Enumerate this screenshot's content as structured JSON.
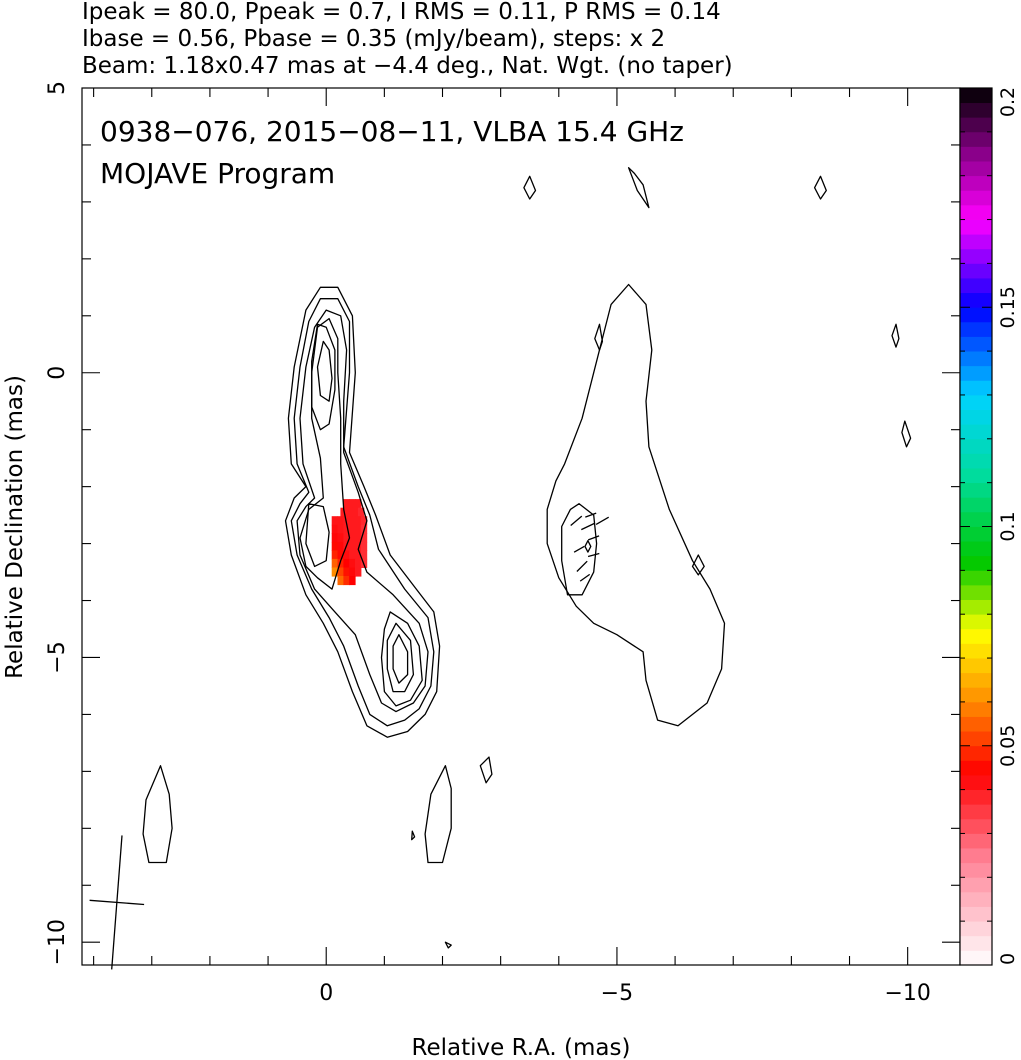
{
  "header_lines": [
    "Ipeak = 80.0, Ppeak = 0.7, I RMS = 0.11, P RMS = 0.14",
    "Ibase = 0.56, Pbase = 0.35 (mJy/beam), steps: x 2",
    "Beam: 1.18x0.47 mas at −4.4 deg., Nat. Wgt. (no taper)"
  ],
  "chart_data": {
    "type": "contour",
    "title": "0938−076, 2015−08−11, VLBA 15.4 GHz",
    "subtitle": "MOJAVE Program",
    "xlabel": "Relative R.A. (mas)",
    "ylabel": "Relative Declination (mas)",
    "xlim": [
      4.2,
      -10.9
    ],
    "ylim": [
      -10.4,
      5.0
    ],
    "x_ticks": [
      {
        "value": 0,
        "label": "0"
      },
      {
        "value": -5,
        "label": "−5"
      },
      {
        "value": -10,
        "label": "−10"
      }
    ],
    "y_ticks": [
      {
        "value": 5,
        "label": "5"
      },
      {
        "value": 0,
        "label": "0"
      },
      {
        "value": -5,
        "label": "−5"
      },
      {
        "value": -10,
        "label": "−10"
      }
    ],
    "colorbar": {
      "min": 0,
      "max": 0.2,
      "ticks": [
        {
          "value": 0,
          "label": "0"
        },
        {
          "value": 0.05,
          "label": "0.05"
        },
        {
          "value": 0.1,
          "label": "0.1"
        },
        {
          "value": 0.15,
          "label": "0.15"
        },
        {
          "value": 0.2,
          "label": "0.2"
        }
      ]
    },
    "left_panel_contours": [
      [
        [
          0.35,
          -2.0
        ],
        [
          0.6,
          -1.6
        ],
        [
          0.65,
          -0.8
        ],
        [
          0.55,
          0.1
        ],
        [
          0.35,
          1.1
        ],
        [
          0.1,
          1.5
        ],
        [
          -0.2,
          1.5
        ],
        [
          -0.45,
          1.0
        ],
        [
          -0.5,
          0.0
        ],
        [
          -0.4,
          -1.4
        ],
        [
          -0.65,
          -2.0
        ],
        [
          -0.85,
          -2.5
        ],
        [
          -1.1,
          -3.2
        ],
        [
          -1.55,
          -3.8
        ],
        [
          -1.85,
          -4.2
        ],
        [
          -1.95,
          -4.8
        ],
        [
          -1.9,
          -5.6
        ],
        [
          -1.7,
          -6.0
        ],
        [
          -1.4,
          -6.3
        ],
        [
          -1.05,
          -6.4
        ],
        [
          -0.7,
          -6.2
        ],
        [
          -0.45,
          -5.6
        ],
        [
          -0.2,
          -4.9
        ],
        [
          0.05,
          -4.4
        ],
        [
          0.35,
          -3.9
        ],
        [
          0.6,
          -3.2
        ],
        [
          0.7,
          -2.6
        ],
        [
          0.55,
          -2.2
        ]
      ],
      [
        [
          0.3,
          -2.1
        ],
        [
          0.5,
          -1.6
        ],
        [
          0.55,
          -0.8
        ],
        [
          0.45,
          0.1
        ],
        [
          0.3,
          0.9
        ],
        [
          0.1,
          1.3
        ],
        [
          -0.2,
          1.3
        ],
        [
          -0.4,
          0.9
        ],
        [
          -0.4,
          0.0
        ],
        [
          -0.3,
          -1.3
        ],
        [
          -0.55,
          -2.0
        ],
        [
          -0.75,
          -2.5
        ],
        [
          -0.9,
          -3.1
        ],
        [
          -1.35,
          -3.8
        ],
        [
          -1.75,
          -4.3
        ],
        [
          -1.85,
          -4.9
        ],
        [
          -1.8,
          -5.5
        ],
        [
          -1.6,
          -5.9
        ],
        [
          -1.35,
          -6.1
        ],
        [
          -1.05,
          -6.2
        ],
        [
          -0.75,
          -6.0
        ],
        [
          -0.55,
          -5.5
        ],
        [
          -0.3,
          -4.8
        ],
        [
          -0.05,
          -4.3
        ],
        [
          0.25,
          -3.8
        ],
        [
          0.5,
          -3.2
        ],
        [
          0.6,
          -2.6
        ],
        [
          0.45,
          -2.3
        ]
      ],
      [
        [
          0.2,
          -2.2
        ],
        [
          0.4,
          -1.6
        ],
        [
          0.45,
          -0.8
        ],
        [
          0.35,
          0.1
        ],
        [
          0.2,
          0.8
        ],
        [
          0.0,
          1.1
        ],
        [
          -0.25,
          1.0
        ],
        [
          -0.35,
          0.4
        ],
        [
          -0.3,
          -0.5
        ],
        [
          -0.3,
          -1.4
        ],
        [
          -0.55,
          -2.1
        ],
        [
          -0.7,
          -2.6
        ],
        [
          -0.55,
          -3.1
        ],
        [
          -0.7,
          -3.5
        ],
        [
          -1.15,
          -3.9
        ],
        [
          -1.6,
          -4.4
        ],
        [
          -1.75,
          -4.9
        ],
        [
          -1.7,
          -5.5
        ],
        [
          -1.5,
          -5.8
        ],
        [
          -1.2,
          -5.95
        ],
        [
          -0.95,
          -5.8
        ],
        [
          -0.75,
          -5.3
        ],
        [
          -0.5,
          -4.6
        ],
        [
          -0.15,
          -4.2
        ],
        [
          0.2,
          -3.8
        ],
        [
          0.45,
          -3.2
        ],
        [
          0.5,
          -2.6
        ],
        [
          0.35,
          -2.35
        ]
      ],
      [
        [
          0.05,
          -2.2
        ],
        [
          0.3,
          -2.4
        ],
        [
          0.45,
          -2.9
        ],
        [
          0.35,
          -3.4
        ],
        [
          0.15,
          -3.6
        ],
        [
          -0.1,
          -3.8
        ],
        [
          -0.25,
          -3.3
        ],
        [
          -0.4,
          -2.9
        ],
        [
          -0.3,
          -2.4
        ],
        [
          -0.25,
          -1.6
        ],
        [
          -0.25,
          -0.8
        ],
        [
          -0.2,
          0.0
        ],
        [
          -0.2,
          0.6
        ],
        [
          -0.05,
          0.95
        ],
        [
          0.15,
          0.8
        ],
        [
          0.25,
          0.0
        ],
        [
          0.25,
          -0.8
        ],
        [
          0.1,
          -1.5
        ]
      ],
      [
        [
          0.3,
          -2.3
        ],
        [
          0.35,
          -3.0
        ],
        [
          0.2,
          -3.4
        ],
        [
          0.0,
          -3.3
        ],
        [
          -0.05,
          -2.8
        ],
        [
          0.05,
          -2.35
        ]
      ],
      [
        [
          0.15,
          0.85
        ],
        [
          0.25,
          0.2
        ],
        [
          0.25,
          -0.6
        ],
        [
          0.1,
          -1.0
        ],
        [
          -0.05,
          -0.9
        ],
        [
          -0.15,
          -0.3
        ],
        [
          -0.15,
          0.4
        ],
        [
          0.0,
          0.8
        ]
      ],
      [
        [
          0.05,
          0.55
        ],
        [
          0.15,
          0.1
        ],
        [
          0.1,
          -0.4
        ],
        [
          -0.05,
          -0.5
        ],
        [
          -0.1,
          -0.1
        ],
        [
          -0.05,
          0.4
        ]
      ],
      [
        [
          -1.1,
          -4.2
        ],
        [
          -1.4,
          -4.4
        ],
        [
          -1.6,
          -4.8
        ],
        [
          -1.65,
          -5.4
        ],
        [
          -1.45,
          -5.75
        ],
        [
          -1.2,
          -5.85
        ],
        [
          -1.0,
          -5.6
        ],
        [
          -0.95,
          -5.0
        ],
        [
          -1.0,
          -4.5
        ]
      ],
      [
        [
          -1.2,
          -4.4
        ],
        [
          -1.45,
          -4.7
        ],
        [
          -1.5,
          -5.3
        ],
        [
          -1.35,
          -5.6
        ],
        [
          -1.15,
          -5.6
        ],
        [
          -1.05,
          -5.2
        ],
        [
          -1.05,
          -4.7
        ]
      ],
      [
        [
          -1.25,
          -4.6
        ],
        [
          -1.4,
          -4.9
        ],
        [
          -1.4,
          -5.3
        ],
        [
          -1.25,
          -5.45
        ],
        [
          -1.15,
          -5.2
        ],
        [
          -1.15,
          -4.8
        ]
      ],
      [
        [
          2.85,
          -6.9
        ],
        [
          3.1,
          -7.5
        ],
        [
          3.15,
          -8.1
        ],
        [
          3.05,
          -8.6
        ],
        [
          2.75,
          -8.6
        ],
        [
          2.65,
          -8.0
        ],
        [
          2.7,
          -7.4
        ]
      ],
      [
        [
          -2.05,
          -6.9
        ],
        [
          -1.8,
          -7.4
        ],
        [
          -1.7,
          -8.1
        ],
        [
          -1.75,
          -8.6
        ],
        [
          -2.0,
          -8.6
        ],
        [
          -2.15,
          -8.0
        ],
        [
          -2.15,
          -7.3
        ]
      ],
      [
        [
          -2.8,
          -6.75
        ],
        [
          -2.85,
          -7.05
        ],
        [
          -2.75,
          -7.2
        ],
        [
          -2.65,
          -6.9
        ]
      ],
      [
        [
          -1.48,
          -8.05
        ],
        [
          -1.52,
          -8.15
        ],
        [
          -1.47,
          -8.2
        ]
      ],
      [
        [
          -2.05,
          -10.0
        ],
        [
          -2.15,
          -10.05
        ],
        [
          -2.1,
          -10.1
        ]
      ]
    ],
    "right_panel_contours": [
      [
        [
          -4.1,
          -1.6
        ],
        [
          -4.4,
          -0.8
        ],
        [
          -4.6,
          0.0
        ],
        [
          -4.9,
          1.2
        ],
        [
          -5.2,
          1.55
        ],
        [
          -5.5,
          1.2
        ],
        [
          -5.6,
          0.4
        ],
        [
          -5.5,
          -0.5
        ],
        [
          -5.55,
          -1.3
        ],
        [
          -5.9,
          -2.4
        ],
        [
          -6.3,
          -3.3
        ],
        [
          -6.6,
          -3.8
        ],
        [
          -6.85,
          -4.4
        ],
        [
          -6.8,
          -5.2
        ],
        [
          -6.55,
          -5.8
        ],
        [
          -6.05,
          -6.2
        ],
        [
          -5.7,
          -6.1
        ],
        [
          -5.5,
          -5.4
        ],
        [
          -5.45,
          -4.9
        ],
        [
          -5.0,
          -4.6
        ],
        [
          -4.6,
          -4.4
        ],
        [
          -4.3,
          -4.1
        ],
        [
          -4.0,
          -3.6
        ],
        [
          -3.8,
          -3.0
        ],
        [
          -3.8,
          -2.4
        ],
        [
          -3.95,
          -1.9
        ]
      ],
      [
        [
          -4.35,
          -2.3
        ],
        [
          -4.6,
          -2.5
        ],
        [
          -4.65,
          -3.0
        ],
        [
          -4.6,
          -3.5
        ],
        [
          -4.4,
          -3.9
        ],
        [
          -4.15,
          -3.9
        ],
        [
          -4.05,
          -3.3
        ],
        [
          -4.05,
          -2.7
        ],
        [
          -4.2,
          -2.4
        ]
      ],
      [
        [
          -4.5,
          -2.95
        ],
        [
          -4.55,
          -3.05
        ],
        [
          -4.5,
          -3.15
        ],
        [
          -4.45,
          -3.05
        ]
      ],
      [
        [
          -4.7,
          0.85
        ],
        [
          -4.75,
          0.55
        ],
        [
          -4.7,
          0.4
        ],
        [
          -4.62,
          0.6
        ]
      ],
      [
        [
          -6.4,
          -3.2
        ],
        [
          -6.5,
          -3.4
        ],
        [
          -6.4,
          -3.55
        ],
        [
          -6.3,
          -3.4
        ]
      ],
      [
        [
          -3.5,
          3.45
        ],
        [
          -3.6,
          3.2
        ],
        [
          -3.5,
          3.05
        ],
        [
          -3.4,
          3.25
        ]
      ],
      [
        [
          -5.2,
          3.6
        ],
        [
          -5.35,
          3.2
        ],
        [
          -5.55,
          2.9
        ],
        [
          -5.45,
          3.3
        ],
        [
          -5.3,
          3.5
        ]
      ],
      [
        [
          -8.5,
          3.45
        ],
        [
          -8.6,
          3.2
        ],
        [
          -8.5,
          3.05
        ],
        [
          -8.4,
          3.25
        ]
      ],
      [
        [
          -9.8,
          0.85
        ],
        [
          -9.85,
          0.6
        ],
        [
          -9.8,
          0.45
        ],
        [
          -9.73,
          0.65
        ]
      ],
      [
        [
          -9.95,
          -0.85
        ],
        [
          -10.05,
          -1.15
        ],
        [
          -9.98,
          -1.3
        ],
        [
          -9.9,
          -1.05
        ]
      ]
    ],
    "polarization_vectors": [
      [
        -4.3,
        -2.6,
        40,
        0.25
      ],
      [
        -4.5,
        -2.7,
        25,
        0.25
      ],
      [
        -4.6,
        -2.9,
        20,
        0.2
      ],
      [
        -4.35,
        -3.1,
        30,
        0.2
      ],
      [
        -4.4,
        -3.4,
        45,
        0.25
      ],
      [
        -4.6,
        -3.2,
        15,
        0.2
      ],
      [
        -4.45,
        -3.6,
        35,
        0.2
      ],
      [
        -4.75,
        -2.6,
        30,
        0.25
      ],
      [
        -4.55,
        -2.5,
        20,
        0.2
      ]
    ],
    "fractional_polarization_pixels": [
      [
        -0.35,
        -2.3,
        0.04
      ],
      [
        -0.45,
        -2.3,
        0.04
      ],
      [
        -0.55,
        -2.3,
        0.04
      ],
      [
        -0.3,
        -2.45,
        0.04
      ],
      [
        -0.4,
        -2.45,
        0.04
      ],
      [
        -0.5,
        -2.45,
        0.04
      ],
      [
        -0.6,
        -2.45,
        0.038
      ],
      [
        -0.15,
        -2.6,
        0.041
      ],
      [
        -0.25,
        -2.6,
        0.041
      ],
      [
        -0.35,
        -2.6,
        0.04
      ],
      [
        -0.45,
        -2.6,
        0.04
      ],
      [
        -0.55,
        -2.6,
        0.04
      ],
      [
        -0.65,
        -2.6,
        0.038
      ],
      [
        -0.15,
        -2.75,
        0.042
      ],
      [
        -0.25,
        -2.75,
        0.041
      ],
      [
        -0.35,
        -2.75,
        0.04
      ],
      [
        -0.45,
        -2.75,
        0.04
      ],
      [
        -0.55,
        -2.75,
        0.04
      ],
      [
        -0.65,
        -2.75,
        0.037
      ],
      [
        -0.15,
        -2.9,
        0.043
      ],
      [
        -0.25,
        -2.9,
        0.042
      ],
      [
        -0.35,
        -2.9,
        0.04
      ],
      [
        -0.45,
        -2.9,
        0.04
      ],
      [
        -0.55,
        -2.9,
        0.04
      ],
      [
        -0.65,
        -2.9,
        0.037
      ],
      [
        -0.15,
        -3.05,
        0.045
      ],
      [
        -0.25,
        -3.05,
        0.043
      ],
      [
        -0.35,
        -3.05,
        0.04
      ],
      [
        -0.45,
        -3.05,
        0.04
      ],
      [
        -0.55,
        -3.05,
        0.04
      ],
      [
        -0.65,
        -3.05,
        0.037
      ],
      [
        -0.15,
        -3.2,
        0.048
      ],
      [
        -0.25,
        -3.2,
        0.045
      ],
      [
        -0.35,
        -3.2,
        0.042
      ],
      [
        -0.45,
        -3.2,
        0.04
      ],
      [
        -0.55,
        -3.2,
        0.04
      ],
      [
        -0.65,
        -3.2,
        0.037
      ],
      [
        -0.15,
        -3.35,
        0.055
      ],
      [
        -0.25,
        -3.35,
        0.048
      ],
      [
        -0.35,
        -3.35,
        0.044
      ],
      [
        -0.45,
        -3.35,
        0.042
      ],
      [
        -0.55,
        -3.35,
        0.04
      ],
      [
        -0.65,
        -3.35,
        0.037
      ],
      [
        -0.15,
        -3.5,
        0.06
      ],
      [
        -0.25,
        -3.5,
        0.052
      ],
      [
        -0.35,
        -3.5,
        0.046
      ],
      [
        -0.45,
        -3.5,
        0.043
      ],
      [
        -0.55,
        -3.5,
        0.04
      ],
      [
        -0.25,
        -3.65,
        0.056
      ],
      [
        -0.35,
        -3.65,
        0.049
      ],
      [
        -0.45,
        -3.65,
        0.044
      ]
    ],
    "beam": {
      "x": 3.6,
      "y": -9.3,
      "major_mas": 1.18,
      "minor_mas": 0.47,
      "pa_deg": -4.4
    }
  }
}
